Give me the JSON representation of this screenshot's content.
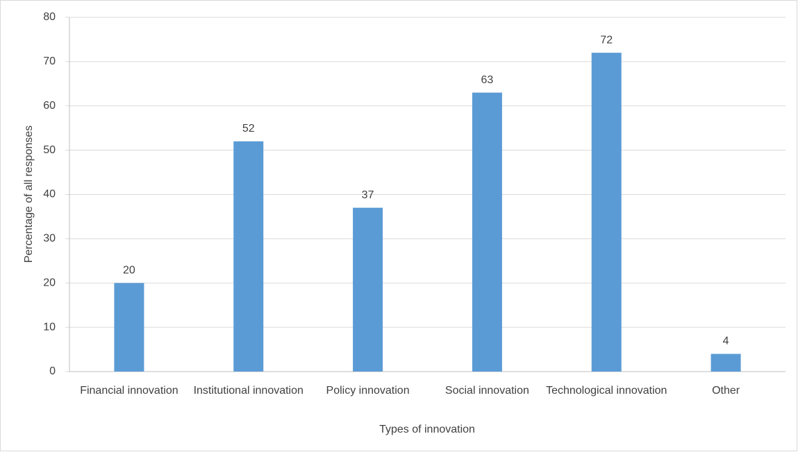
{
  "chart_data": {
    "type": "bar",
    "x_label": "Types of innovation",
    "y_label": "Percentage of all responses",
    "categories": [
      "Financial innovation",
      "Institutional innovation",
      "Policy innovation",
      "Social innovation",
      "Technological innovation",
      "Other"
    ],
    "values": [
      20,
      52,
      37,
      63,
      72,
      4
    ],
    "color": "#5b9bd5",
    "ylim": [
      0,
      80
    ],
    "yticks": [
      0,
      10,
      20,
      30,
      40,
      50,
      60,
      70,
      80
    ],
    "grid": true
  }
}
